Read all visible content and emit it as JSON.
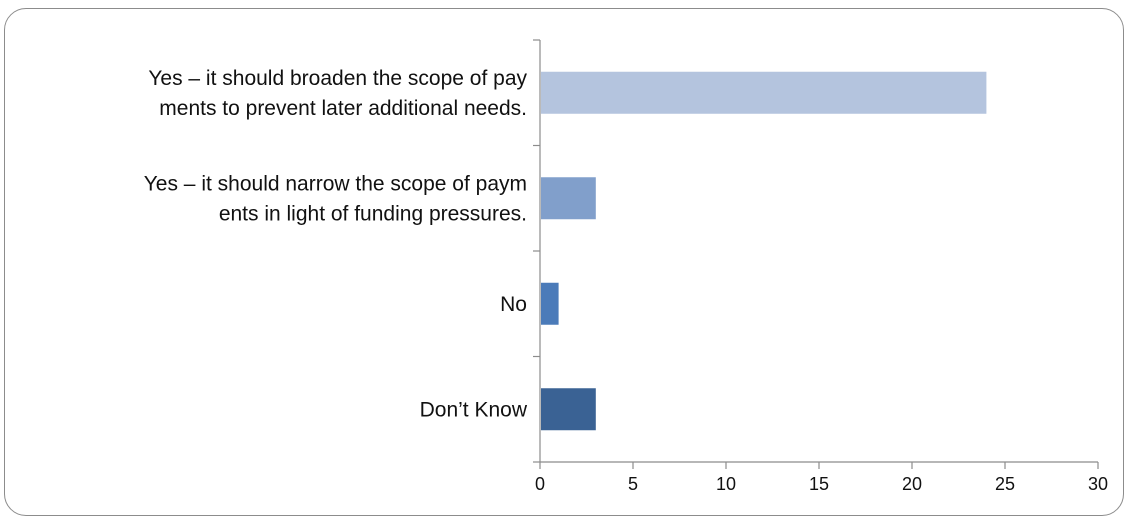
{
  "chart_data": {
    "type": "bar",
    "orientation": "horizontal",
    "categories": [
      [
        "Yes – it should broaden the scope of pay",
        "ments to prevent later additional needs."
      ],
      [
        "Yes – it should narrow the scope of paym",
        "ents in light of funding pressures."
      ],
      [
        "No"
      ],
      [
        "Don’t Know"
      ]
    ],
    "values": [
      24,
      3,
      1,
      3
    ],
    "colors": [
      "#b4c4de",
      "#819fcb",
      "#4b7bb9",
      "#3a6294"
    ],
    "xlim": [
      0,
      30
    ],
    "xticks": [
      0,
      5,
      10,
      15,
      20,
      25,
      30
    ],
    "grid": false,
    "legend": "none"
  }
}
